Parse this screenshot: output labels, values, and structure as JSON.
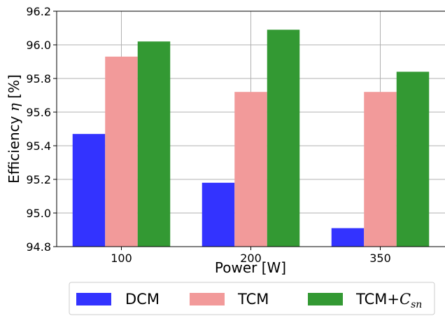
{
  "chart_data": {
    "type": "bar",
    "categories": [
      "100",
      "200",
      "350"
    ],
    "series": [
      {
        "name": "DCM",
        "values": [
          95.47,
          95.18,
          94.91
        ]
      },
      {
        "name": "TCM",
        "values": [
          95.93,
          95.72,
          95.72
        ]
      },
      {
        "name": "TCM+",
        "name_sub": "sn",
        "name_math": "C",
        "values": [
          96.02,
          96.09,
          95.84
        ]
      }
    ],
    "colors": [
      "#3333ff",
      "#f29a9a",
      "#339933"
    ],
    "title": "",
    "xlabel": "Power [W]",
    "ylabel_prefix": "Efficiency ",
    "ylabel_symbol": "η",
    "ylabel_suffix": " [%]",
    "ylim": [
      94.8,
      96.2
    ],
    "yticks": [
      "94.8",
      "95.0",
      "95.2",
      "95.4",
      "95.6",
      "95.8",
      "96.0",
      "96.2"
    ],
    "grid": true,
    "legend_position": "bottom"
  }
}
